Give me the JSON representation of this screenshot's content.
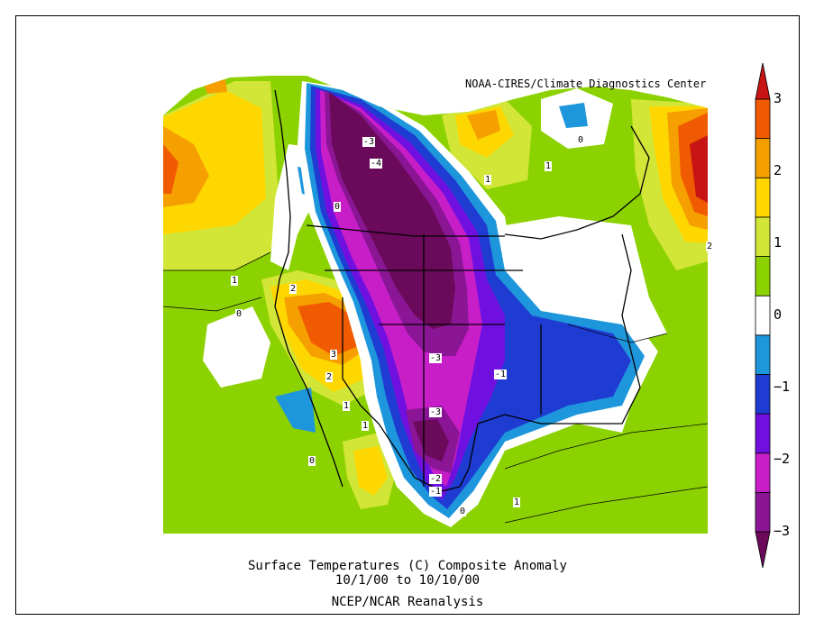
{
  "credit": "NOAA-CIRES/Climate Diagnostics Center",
  "title": {
    "line1": "Surface Temperatures (C)   Composite Anomaly",
    "line2": "10/1/00  to 10/10/00",
    "line3": "NCEP/NCAR Reanalysis"
  },
  "colorbar": {
    "labels": [
      "3",
      "2",
      "1",
      "0",
      "−1",
      "−2",
      "−3"
    ],
    "colors": [
      "#6b0a5a",
      "#8a1695",
      "#c81ec8",
      "#7010e0",
      "#1e3cd2",
      "#1e96dc",
      "#ffffff",
      "#8cd200",
      "#d2e637",
      "#ffd700",
      "#f5a000",
      "#f05a00",
      "#c81414"
    ]
  },
  "contour_labels": [
    "-3",
    "-4",
    "0",
    "1",
    "1",
    "0",
    "2",
    "1",
    "0",
    "3",
    "2",
    "1",
    "-3",
    "-1",
    "-3",
    "-2",
    "-1",
    "0",
    "1",
    "1",
    "0",
    "2"
  ]
}
